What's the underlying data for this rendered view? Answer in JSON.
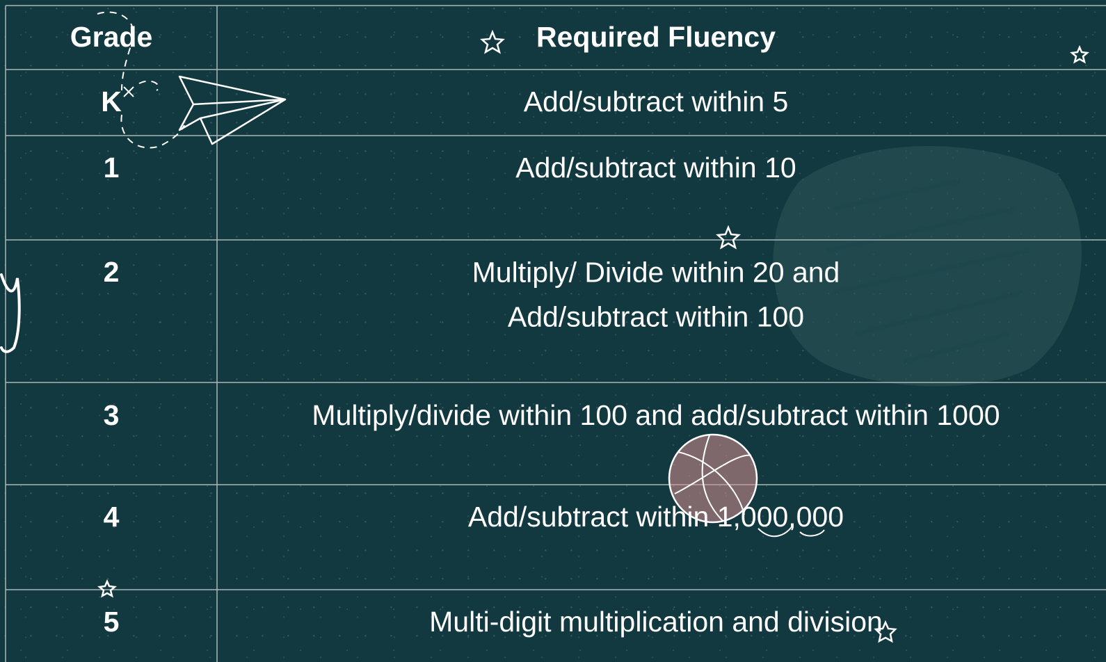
{
  "table": {
    "headers": [
      "Grade",
      "Required Fluency"
    ],
    "rows": [
      [
        "K",
        "Add/subtract within 5"
      ],
      [
        "1",
        "Add/subtract within 10"
      ],
      [
        "2",
        [
          "Multiply/ Divide within 20 and",
          "Add/subtract within 100"
        ]
      ],
      [
        "3",
        "Multiply/divide within 100 and add/subtract within 1000"
      ],
      [
        "4",
        "Add/subtract within 1,000,000"
      ],
      [
        "5",
        "Multi-digit multiplication and division"
      ]
    ]
  }
}
